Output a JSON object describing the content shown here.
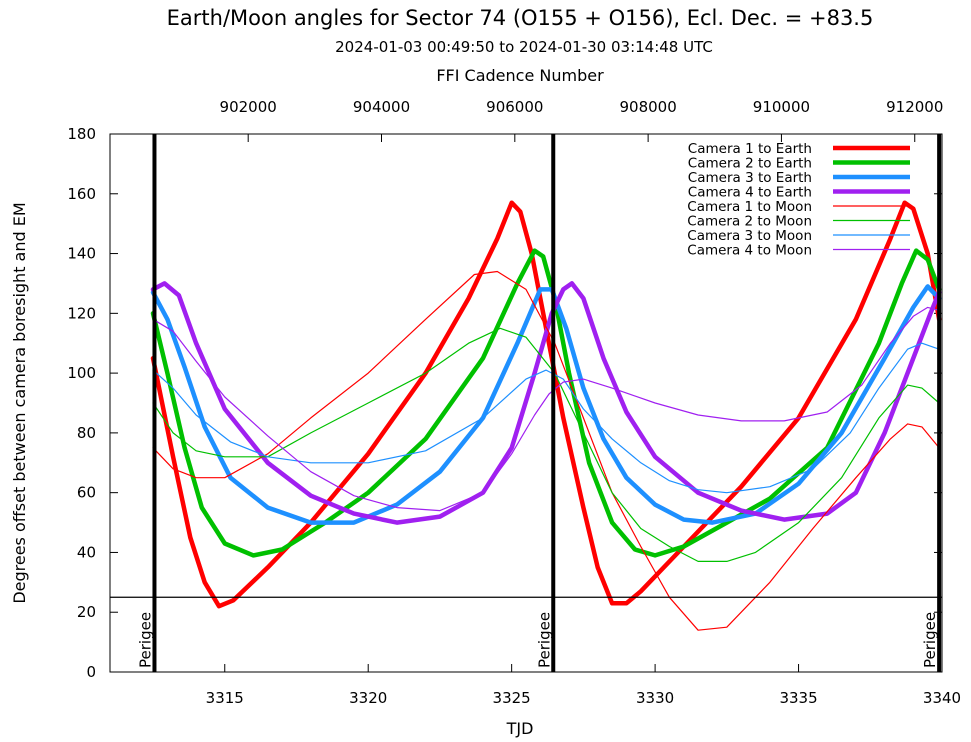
{
  "chart_data": {
    "type": "line",
    "title": "Earth/Moon angles for Sector 74 (O155 + O156), Ecl. Dec. = +83.5",
    "subtitle": "2024-01-03 00:49:50 to 2024-01-30 03:14:48 UTC",
    "top_axis_label": "FFI Cadence Number",
    "xlabel": "TJD",
    "ylabel": "Degrees offset between camera boresight and EM",
    "xlim": [
      3311.0,
      3340.0
    ],
    "ylim": [
      0,
      180
    ],
    "x_ticks": [
      3315,
      3320,
      3325,
      3330,
      3335,
      3340
    ],
    "y_ticks": [
      0,
      20,
      40,
      60,
      80,
      100,
      120,
      140,
      160,
      180
    ],
    "top_ticks": [
      902000,
      904000,
      906000,
      908000,
      910000,
      912000
    ],
    "top_axis_mapping": {
      "cadence_a": 900000,
      "tjd_a": 3311.17,
      "cadence_b": 912000,
      "tjd_b": 3339.05
    },
    "reference_line_y": 25,
    "perigee_label": "Perigee",
    "perigees": [
      3312.55,
      3326.45,
      3339.9
    ],
    "grid": false,
    "legend_position": "top-right",
    "series": [
      {
        "name": "Camera 1 to Earth",
        "color": "#ff0000",
        "width": "thick",
        "points": [
          [
            3312.5,
            105
          ],
          [
            3313.2,
            72
          ],
          [
            3313.8,
            45
          ],
          [
            3314.3,
            30
          ],
          [
            3314.8,
            22
          ],
          [
            3315.3,
            24
          ],
          [
            3316.5,
            35
          ],
          [
            3318,
            50
          ],
          [
            3320,
            73
          ],
          [
            3322,
            100
          ],
          [
            3323.5,
            125
          ],
          [
            3324.5,
            145
          ],
          [
            3325.0,
            157
          ],
          [
            3325.3,
            154
          ],
          [
            3325.7,
            140
          ],
          [
            3326.2,
            115
          ],
          [
            3326.8,
            85
          ],
          [
            3327.5,
            55
          ],
          [
            3328.0,
            35
          ],
          [
            3328.5,
            23
          ],
          [
            3329.0,
            23
          ],
          [
            3329.5,
            27
          ],
          [
            3331,
            42
          ],
          [
            3333,
            62
          ],
          [
            3335,
            85
          ],
          [
            3337,
            118
          ],
          [
            3338.2,
            145
          ],
          [
            3338.7,
            157
          ],
          [
            3339.0,
            155
          ],
          [
            3339.5,
            140
          ],
          [
            3339.9,
            118
          ]
        ]
      },
      {
        "name": "Camera 2 to Earth",
        "color": "#00c000",
        "width": "thick",
        "points": [
          [
            3312.5,
            120
          ],
          [
            3313.0,
            100
          ],
          [
            3313.6,
            75
          ],
          [
            3314.2,
            55
          ],
          [
            3315.0,
            43
          ],
          [
            3316.0,
            39
          ],
          [
            3317.0,
            41
          ],
          [
            3318.5,
            50
          ],
          [
            3320,
            60
          ],
          [
            3322,
            78
          ],
          [
            3324,
            105
          ],
          [
            3325.2,
            130
          ],
          [
            3325.8,
            141
          ],
          [
            3326.1,
            139
          ],
          [
            3326.5,
            125
          ],
          [
            3327.0,
            100
          ],
          [
            3327.7,
            70
          ],
          [
            3328.5,
            50
          ],
          [
            3329.3,
            41
          ],
          [
            3330.0,
            39
          ],
          [
            3331,
            42
          ],
          [
            3332.5,
            50
          ],
          [
            3334,
            58
          ],
          [
            3336,
            75
          ],
          [
            3337.8,
            110
          ],
          [
            3338.6,
            130
          ],
          [
            3339.1,
            141
          ],
          [
            3339.5,
            138
          ],
          [
            3339.9,
            128
          ]
        ]
      },
      {
        "name": "Camera 3 to Earth",
        "color": "#1e90ff",
        "width": "thick",
        "points": [
          [
            3312.5,
            127
          ],
          [
            3313.0,
            118
          ],
          [
            3313.6,
            102
          ],
          [
            3314.3,
            82
          ],
          [
            3315.2,
            65
          ],
          [
            3316.5,
            55
          ],
          [
            3318,
            50
          ],
          [
            3319.5,
            50
          ],
          [
            3321,
            56
          ],
          [
            3322.5,
            67
          ],
          [
            3324,
            85
          ],
          [
            3325.2,
            110
          ],
          [
            3326.0,
            128
          ],
          [
            3326.4,
            128
          ],
          [
            3326.9,
            115
          ],
          [
            3327.5,
            95
          ],
          [
            3328.2,
            78
          ],
          [
            3329.0,
            65
          ],
          [
            3330.0,
            56
          ],
          [
            3331.0,
            51
          ],
          [
            3332.0,
            50
          ],
          [
            3333.5,
            53
          ],
          [
            3335,
            63
          ],
          [
            3336.5,
            80
          ],
          [
            3338.0,
            105
          ],
          [
            3339.0,
            122
          ],
          [
            3339.5,
            129
          ],
          [
            3339.9,
            125
          ]
        ]
      },
      {
        "name": "Camera 4 to Earth",
        "color": "#a020f0",
        "width": "thick",
        "points": [
          [
            3312.5,
            128
          ],
          [
            3312.9,
            130
          ],
          [
            3313.4,
            126
          ],
          [
            3314.0,
            110
          ],
          [
            3315.0,
            88
          ],
          [
            3316.5,
            70
          ],
          [
            3318,
            59
          ],
          [
            3319.5,
            53
          ],
          [
            3321,
            50
          ],
          [
            3322.5,
            52
          ],
          [
            3324,
            60
          ],
          [
            3325,
            75
          ],
          [
            3325.8,
            100
          ],
          [
            3326.4,
            120
          ],
          [
            3326.8,
            128
          ],
          [
            3327.1,
            130
          ],
          [
            3327.5,
            125
          ],
          [
            3328.2,
            105
          ],
          [
            3329.0,
            87
          ],
          [
            3330.0,
            72
          ],
          [
            3331.5,
            60
          ],
          [
            3333,
            54
          ],
          [
            3334.5,
            51
          ],
          [
            3336,
            53
          ],
          [
            3337,
            60
          ],
          [
            3338,
            80
          ],
          [
            3339,
            105
          ],
          [
            3339.6,
            120
          ],
          [
            3339.9,
            127
          ]
        ]
      },
      {
        "name": "Camera 1 to Moon",
        "color": "#ff0000",
        "width": "thin",
        "points": [
          [
            3312.5,
            75
          ],
          [
            3313.2,
            68
          ],
          [
            3314.0,
            65
          ],
          [
            3315.0,
            65
          ],
          [
            3316.5,
            73
          ],
          [
            3318,
            85
          ],
          [
            3320,
            100
          ],
          [
            3322,
            118
          ],
          [
            3323.7,
            133
          ],
          [
            3324.5,
            134
          ],
          [
            3325.5,
            128
          ],
          [
            3326.5,
            110
          ],
          [
            3327.5,
            85
          ],
          [
            3328.5,
            60
          ],
          [
            3329.5,
            42
          ],
          [
            3330.5,
            25
          ],
          [
            3331.5,
            14
          ],
          [
            3332.5,
            15
          ],
          [
            3334,
            30
          ],
          [
            3335.5,
            48
          ],
          [
            3337,
            65
          ],
          [
            3338.2,
            78
          ],
          [
            3338.8,
            83
          ],
          [
            3339.3,
            82
          ],
          [
            3339.9,
            75
          ]
        ]
      },
      {
        "name": "Camera 2 to Moon",
        "color": "#00c000",
        "width": "thin",
        "points": [
          [
            3312.5,
            90
          ],
          [
            3313.2,
            80
          ],
          [
            3314.0,
            74
          ],
          [
            3315.0,
            72
          ],
          [
            3316.5,
            72
          ],
          [
            3318,
            80
          ],
          [
            3320,
            90
          ],
          [
            3322,
            100
          ],
          [
            3323.5,
            110
          ],
          [
            3324.6,
            115
          ],
          [
            3325.5,
            112
          ],
          [
            3326.5,
            100
          ],
          [
            3327.5,
            80
          ],
          [
            3328.5,
            60
          ],
          [
            3329.5,
            48
          ],
          [
            3330.5,
            42
          ],
          [
            3331.5,
            37
          ],
          [
            3332.5,
            37
          ],
          [
            3333.5,
            40
          ],
          [
            3335,
            50
          ],
          [
            3336.5,
            65
          ],
          [
            3337.8,
            85
          ],
          [
            3338.8,
            96
          ],
          [
            3339.3,
            95
          ],
          [
            3339.9,
            90
          ]
        ]
      },
      {
        "name": "Camera 3 to Moon",
        "color": "#1e90ff",
        "width": "thin",
        "points": [
          [
            3312.5,
            101
          ],
          [
            3313.2,
            95
          ],
          [
            3314.0,
            86
          ],
          [
            3315.2,
            77
          ],
          [
            3316.5,
            72
          ],
          [
            3318,
            70
          ],
          [
            3320,
            70
          ],
          [
            3322,
            74
          ],
          [
            3324,
            85
          ],
          [
            3325.5,
            98
          ],
          [
            3326.2,
            101
          ],
          [
            3326.8,
            98
          ],
          [
            3327.5,
            88
          ],
          [
            3328.5,
            78
          ],
          [
            3329.5,
            70
          ],
          [
            3330.5,
            64
          ],
          [
            3331.5,
            61
          ],
          [
            3332.5,
            60
          ],
          [
            3334,
            62
          ],
          [
            3335.5,
            68
          ],
          [
            3336.8,
            80
          ],
          [
            3337.8,
            95
          ],
          [
            3338.8,
            108
          ],
          [
            3339.3,
            110
          ],
          [
            3339.9,
            108
          ]
        ]
      },
      {
        "name": "Camera 4 to Moon",
        "color": "#a020f0",
        "width": "thin",
        "points": [
          [
            3312.5,
            118
          ],
          [
            3313.2,
            114
          ],
          [
            3314.0,
            104
          ],
          [
            3315.0,
            92
          ],
          [
            3316.5,
            79
          ],
          [
            3318,
            67
          ],
          [
            3319.5,
            59
          ],
          [
            3321,
            55
          ],
          [
            3322.5,
            54
          ],
          [
            3324,
            60
          ],
          [
            3325,
            73
          ],
          [
            3325.8,
            86
          ],
          [
            3326.3,
            93
          ],
          [
            3326.8,
            97
          ],
          [
            3327.5,
            98
          ],
          [
            3328.5,
            95
          ],
          [
            3330,
            90
          ],
          [
            3331.5,
            86
          ],
          [
            3333,
            84
          ],
          [
            3334.5,
            84
          ],
          [
            3336,
            87
          ],
          [
            3337.2,
            96
          ],
          [
            3338.2,
            110
          ],
          [
            3339.0,
            119
          ],
          [
            3339.5,
            122
          ],
          [
            3339.9,
            121
          ]
        ]
      }
    ]
  }
}
